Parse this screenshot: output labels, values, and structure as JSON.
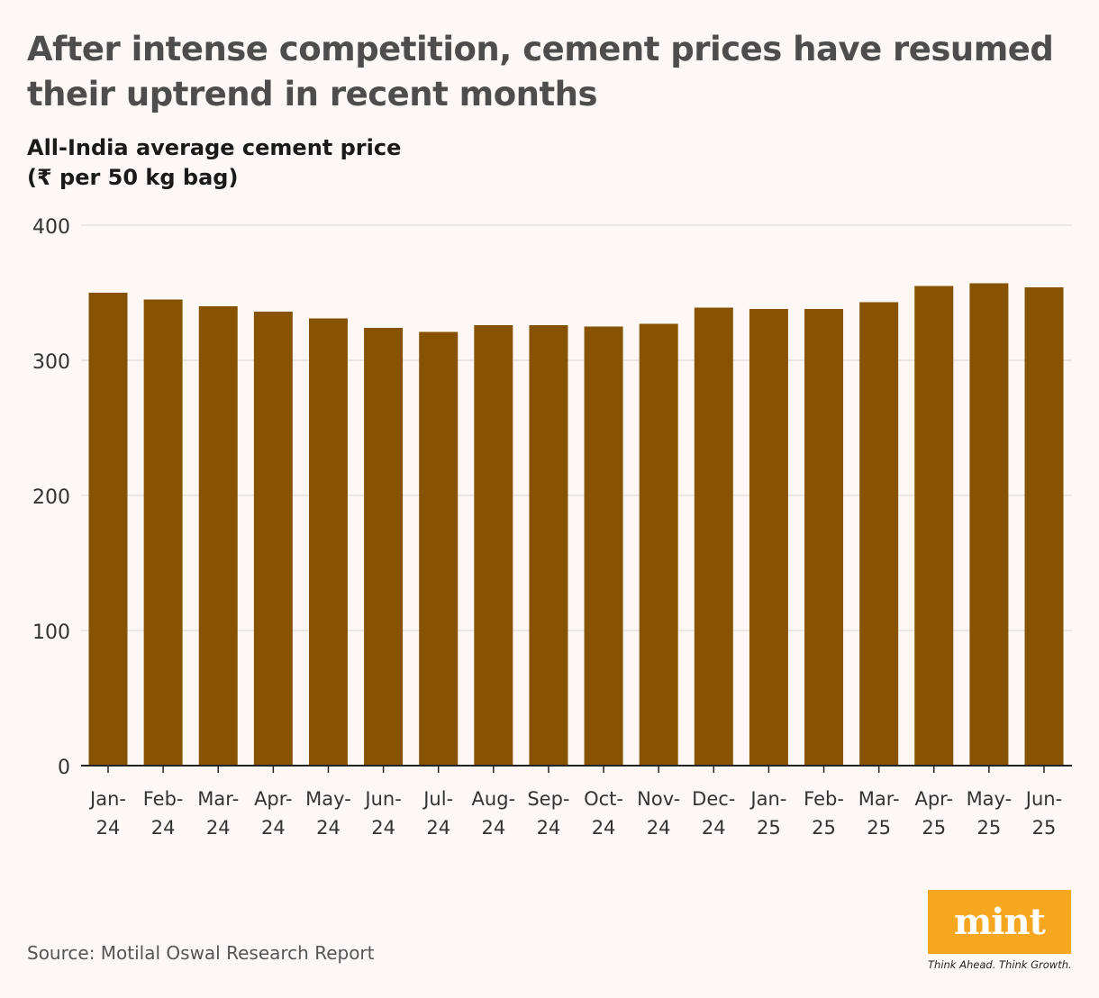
{
  "title": "After intense competition, cement prices have resumed their uptrend in recent months",
  "subtitle": {
    "line1": "All-India average cement price",
    "line2": "(₹ per 50 kg bag)"
  },
  "source": "Source: Motilal Oswal Research Report",
  "logo": {
    "text": "mint",
    "tagline": "Think Ahead. Think Growth."
  },
  "colors": {
    "bar": "#875301",
    "background": "#fdf8f5",
    "grid": "#e3e0dc",
    "logo": "#f7a620"
  },
  "chart_data": {
    "type": "bar",
    "categories": [
      "Jan-24",
      "Feb-24",
      "Mar-24",
      "Apr-24",
      "May-24",
      "Jun-24",
      "Jul-24",
      "Aug-24",
      "Sep-24",
      "Oct-24",
      "Nov-24",
      "Dec-24",
      "Jan-25",
      "Feb-25",
      "Mar-25",
      "Apr-25",
      "May-25",
      "Jun-25"
    ],
    "category_lines": [
      [
        "Jan-",
        "24"
      ],
      [
        "Feb-",
        "24"
      ],
      [
        "Mar-",
        "24"
      ],
      [
        "Apr-",
        "24"
      ],
      [
        "May-",
        "24"
      ],
      [
        "Jun-",
        "24"
      ],
      [
        "Jul-",
        "24"
      ],
      [
        "Aug-",
        "24"
      ],
      [
        "Sep-",
        "24"
      ],
      [
        "Oct-",
        "24"
      ],
      [
        "Nov-",
        "24"
      ],
      [
        "Dec-",
        "24"
      ],
      [
        "Jan-",
        "25"
      ],
      [
        "Feb-",
        "25"
      ],
      [
        "Mar-",
        "25"
      ],
      [
        "Apr-",
        "25"
      ],
      [
        "May-",
        "25"
      ],
      [
        "Jun-",
        "25"
      ]
    ],
    "values": [
      350,
      345,
      340,
      336,
      331,
      324,
      321,
      326,
      326,
      325,
      327,
      339,
      338,
      338,
      343,
      355,
      357,
      354
    ],
    "ylim": [
      0,
      400
    ],
    "yticks": [
      0,
      100,
      200,
      300,
      400
    ],
    "xlabel": "",
    "ylabel": "",
    "grid": true,
    "legend": false
  }
}
